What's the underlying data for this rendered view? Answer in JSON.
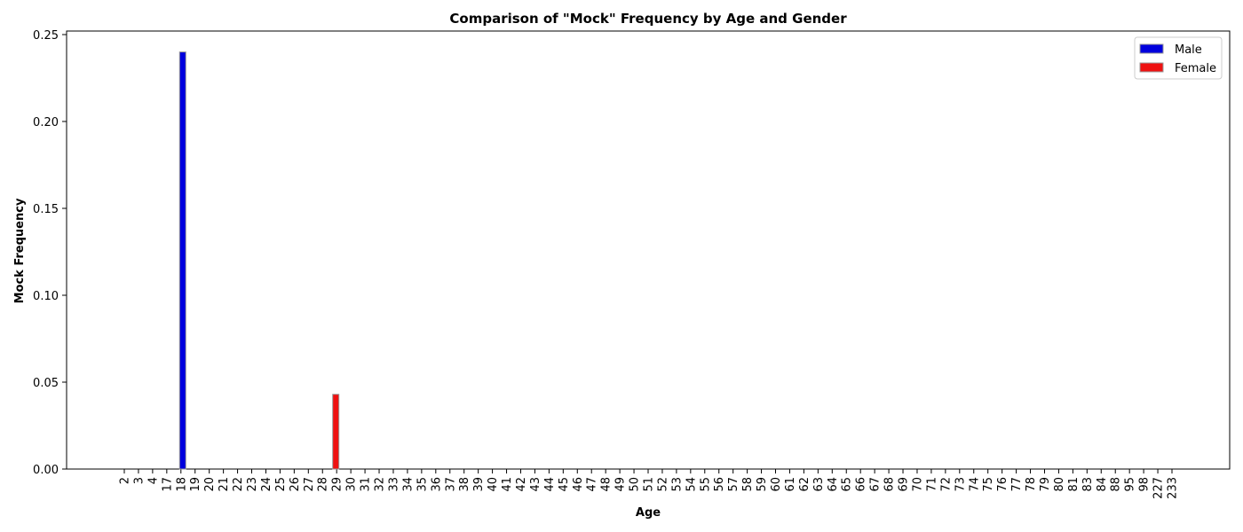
{
  "chart_data": {
    "type": "bar",
    "title": "Comparison of \"Mock\" Frequency by Age and Gender",
    "xlabel": "Age",
    "ylabel": "Mock Frequency",
    "ylim": [
      0,
      0.25
    ],
    "yticks": [
      "0.00",
      "0.05",
      "0.10",
      "0.15",
      "0.20",
      "0.25"
    ],
    "grid": false,
    "legend_position": "top-right",
    "categories": [
      "2",
      "3",
      "4",
      "17",
      "18",
      "19",
      "20",
      "21",
      "22",
      "23",
      "24",
      "25",
      "26",
      "27",
      "28",
      "29",
      "30",
      "31",
      "32",
      "33",
      "34",
      "35",
      "36",
      "37",
      "38",
      "39",
      "40",
      "41",
      "42",
      "43",
      "44",
      "45",
      "46",
      "47",
      "48",
      "49",
      "50",
      "51",
      "52",
      "53",
      "54",
      "55",
      "56",
      "57",
      "58",
      "59",
      "60",
      "61",
      "62",
      "63",
      "64",
      "65",
      "66",
      "67",
      "68",
      "69",
      "70",
      "71",
      "72",
      "73",
      "74",
      "75",
      "76",
      "77",
      "78",
      "79",
      "80",
      "81",
      "83",
      "84",
      "88",
      "95",
      "98",
      "227",
      "233"
    ],
    "series": [
      {
        "name": "Male",
        "color": "#0000dd",
        "values": [
          0,
          0,
          0,
          0,
          0.24,
          0,
          0,
          0,
          0,
          0,
          0,
          0,
          0,
          0,
          0,
          0,
          0,
          0,
          0,
          0,
          0,
          0,
          0,
          0,
          0,
          0,
          0,
          0,
          0,
          0,
          0,
          0,
          0,
          0,
          0,
          0,
          0,
          0,
          0,
          0,
          0,
          0,
          0,
          0,
          0,
          0,
          0,
          0,
          0,
          0,
          0,
          0,
          0,
          0,
          0,
          0,
          0,
          0,
          0,
          0,
          0,
          0,
          0,
          0,
          0,
          0,
          0,
          0,
          0,
          0,
          0,
          0,
          0,
          0,
          0
        ]
      },
      {
        "name": "Female",
        "color": "#ee1111",
        "values": [
          0,
          0,
          0,
          0,
          0,
          0,
          0,
          0,
          0,
          0,
          0,
          0,
          0,
          0,
          0,
          0.043,
          0,
          0,
          0,
          0,
          0,
          0,
          0,
          0,
          0,
          0,
          0,
          0,
          0,
          0,
          0,
          0,
          0,
          0,
          0,
          0,
          0,
          0,
          0,
          0,
          0,
          0,
          0,
          0,
          0,
          0,
          0,
          0,
          0,
          0,
          0,
          0,
          0,
          0,
          0,
          0,
          0,
          0,
          0,
          0,
          0,
          0,
          0,
          0,
          0,
          0,
          0,
          0,
          0,
          0,
          0,
          0,
          0,
          0,
          0
        ]
      }
    ]
  }
}
